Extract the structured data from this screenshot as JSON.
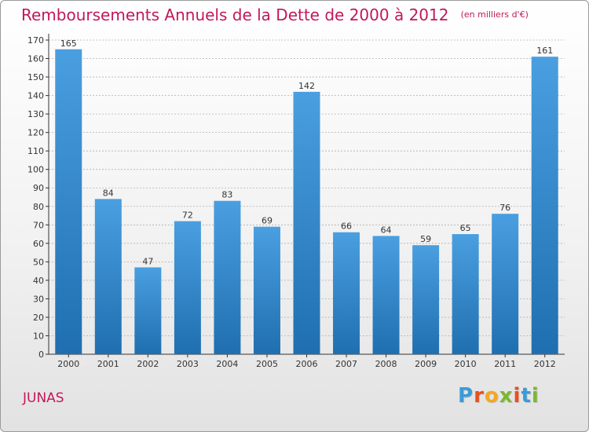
{
  "chart_data": {
    "type": "bar",
    "title": "Remboursements Annuels de la Dette de 2000 à 2012",
    "subtitle": "(en milliers d'€)",
    "categories": [
      "2000",
      "2001",
      "2002",
      "2003",
      "2004",
      "2005",
      "2006",
      "2007",
      "2008",
      "2009",
      "2010",
      "2011",
      "2012"
    ],
    "values": [
      165,
      84,
      47,
      72,
      83,
      69,
      142,
      66,
      64,
      59,
      65,
      76,
      161
    ],
    "ylim": [
      0,
      170
    ],
    "yticks": [
      0,
      10,
      20,
      30,
      40,
      50,
      60,
      70,
      80,
      90,
      100,
      110,
      120,
      130,
      140,
      150,
      160,
      170
    ],
    "grid": true,
    "bar_color": "#4a9fe0",
    "bar_color_dark": "#1f6fb0"
  },
  "footer": {
    "commune": "JUNAS",
    "logo_text": "Proxiti",
    "logo_colors": [
      "#3a9bd8",
      "#e8501e",
      "#f5a623",
      "#7cb82f",
      "#e8501e",
      "#3a9bd8",
      "#7cb82f"
    ]
  },
  "colors": {
    "title": "#c2185b",
    "axis": "#333333",
    "grid": "#b0b0b0"
  }
}
